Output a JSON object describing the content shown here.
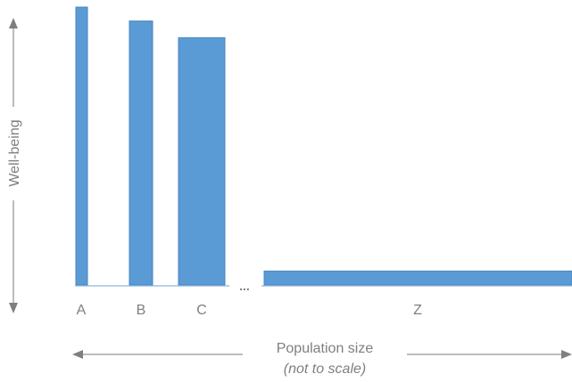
{
  "colors": {
    "bar": "#5b9bd5",
    "bar_stroke": "#4a86c0",
    "axis": "#a6a6a6",
    "text": "#7f7f7f"
  },
  "chart_data": {
    "type": "bar",
    "categories": [
      "A",
      "B",
      "C",
      "Z"
    ],
    "gap_marker": "...",
    "ylabel": "Well-being",
    "xlabel": "Population size",
    "xlabel_note": "(not to scale)",
    "bars": [
      {
        "label": "A",
        "wellbeing": 100,
        "population": 1
      },
      {
        "label": "B",
        "wellbeing": 95,
        "population": 2
      },
      {
        "label": "C",
        "wellbeing": 89,
        "population": 4
      },
      {
        "label": "Z",
        "wellbeing": 5,
        "population": 27
      }
    ]
  }
}
